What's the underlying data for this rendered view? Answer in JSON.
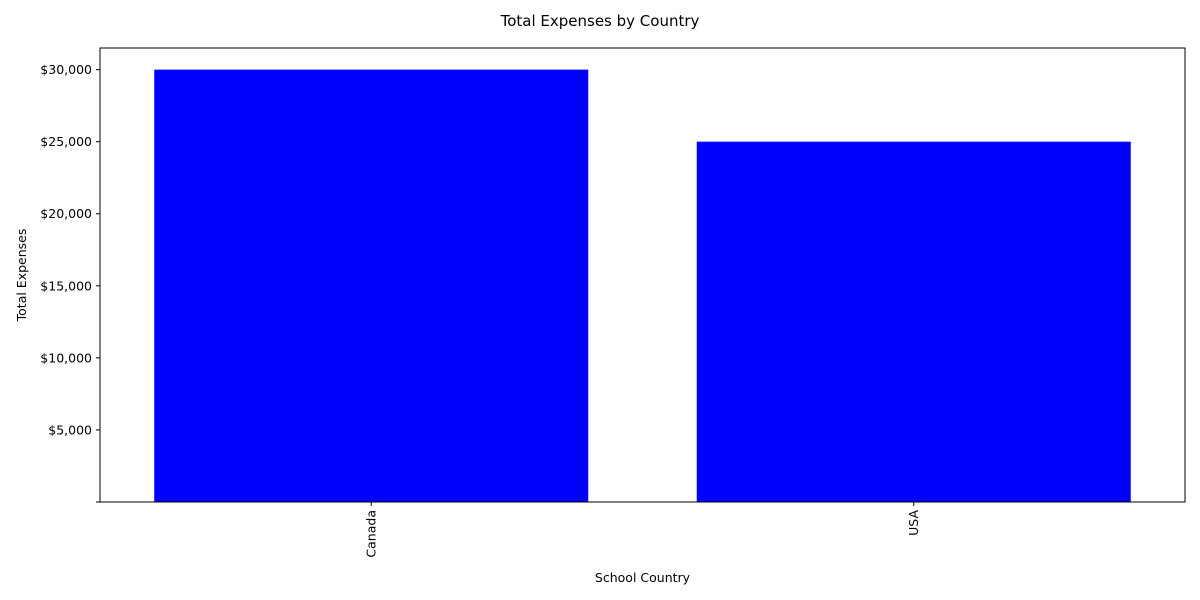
{
  "chart_data": {
    "type": "bar",
    "title": "Total Expenses by Country",
    "xlabel": "School Country",
    "ylabel": "Total Expenses",
    "categories": [
      "Canada",
      "USA"
    ],
    "values": [
      30000,
      25000
    ],
    "ylim": [
      0,
      31500
    ],
    "y_ticks": [
      0,
      5000,
      10000,
      15000,
      20000,
      25000,
      30000
    ],
    "y_tick_labels": [
      "",
      "$5,000",
      "$10,000",
      "$15,000",
      "$20,000",
      "$25,000",
      "$30,000"
    ],
    "bar_color": "#0000ff",
    "x_tick_rotation": "vertical",
    "grid": false,
    "legend": "none"
  }
}
